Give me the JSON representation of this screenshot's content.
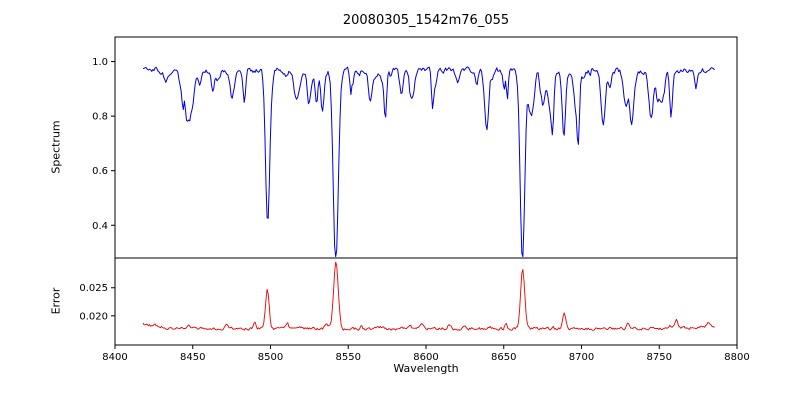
{
  "chart_data": {
    "type": "line",
    "title": "20080305_1542m76_055",
    "xlabel": "Wavelength",
    "xlim": [
      8400,
      8800
    ],
    "x_data_range": [
      8418,
      8786
    ],
    "xticks": {
      "values": [
        8400,
        8450,
        8500,
        8550,
        8600,
        8650,
        8700,
        8750,
        8800
      ],
      "labels": [
        "8400",
        "8450",
        "8500",
        "8550",
        "8600",
        "8650",
        "8700",
        "8750",
        "8800"
      ]
    },
    "panels": [
      {
        "name": "spectrum",
        "ylabel": "Spectrum",
        "color": "#0000dd",
        "ylim": [
          0.28,
          1.09
        ],
        "yticks": {
          "values": [
            0.4,
            0.6,
            0.8,
            1.0
          ],
          "labels": [
            "0.4",
            "0.6",
            "0.8",
            "1.0"
          ]
        },
        "continuum": 0.968,
        "noise_amplitude": 0.035,
        "absorption_lines": [
          {
            "center": 8498.0,
            "depth": 0.5,
            "sigma": 1.3
          },
          {
            "center": 8542.1,
            "depth": 0.67,
            "sigma": 1.6
          },
          {
            "center": 8662.1,
            "depth": 0.65,
            "sigma": 1.5
          },
          {
            "center": 8688.6,
            "depth": 0.24,
            "sigma": 1.1
          }
        ]
      },
      {
        "name": "error",
        "ylabel": "Error",
        "color": "#ee0000",
        "ylim": [
          0.0148,
          0.0303
        ],
        "yticks": {
          "values": [
            0.02,
            0.025
          ],
          "labels": [
            "0.020",
            "0.025"
          ]
        },
        "baseline": 0.0177,
        "noise_amplitude": 0.0009,
        "peaks": [
          {
            "center": 8498.0,
            "height": 0.0062,
            "sigma": 1.2
          },
          {
            "center": 8542.1,
            "height": 0.0118,
            "sigma": 1.5
          },
          {
            "center": 8662.1,
            "height": 0.0108,
            "sigma": 1.3
          },
          {
            "center": 8688.6,
            "height": 0.0019,
            "sigma": 1.0
          }
        ]
      }
    ]
  }
}
